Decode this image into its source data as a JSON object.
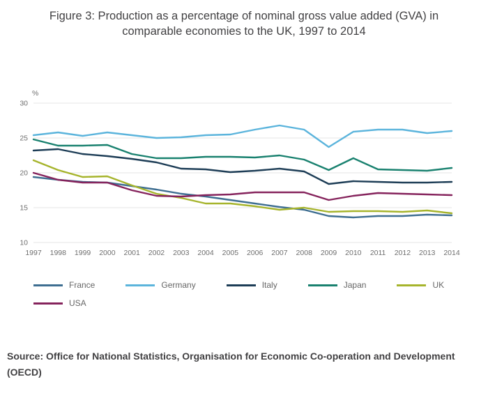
{
  "title": {
    "line1": "Figure 3: Production as a percentage of nominal gross value added (GVA) in",
    "line2": "comparable economies to the UK, 1997 to 2014"
  },
  "source": "Source: Office for National Statistics, Organisation for Economic Co-operation and Development (OECD)",
  "colors": {
    "grid": "#e6e6e6",
    "axis_text": "#6e6e6e",
    "title_text": "#414042"
  },
  "chart_data": {
    "type": "line",
    "title": "Figure 3: Production as a percentage of nominal gross value added (GVA) in comparable economies to the UK, 1997 to 2014",
    "xlabel": "",
    "ylabel": "%",
    "ylim": [
      10,
      30
    ],
    "yticks": [
      10,
      15,
      20,
      25,
      30
    ],
    "grid": "horizontal",
    "legend_position": "bottom",
    "x": [
      1997,
      1998,
      1999,
      2000,
      2001,
      2002,
      2003,
      2004,
      2005,
      2006,
      2007,
      2008,
      2009,
      2010,
      2011,
      2012,
      2013,
      2014
    ],
    "series": [
      {
        "name": "France",
        "color": "#3e6e91",
        "values": [
          19.4,
          19.0,
          18.7,
          18.6,
          18.1,
          17.6,
          17.0,
          16.6,
          16.1,
          15.6,
          15.1,
          14.7,
          13.8,
          13.6,
          13.8,
          13.8,
          14.0,
          13.9
        ]
      },
      {
        "name": "Germany",
        "color": "#5bb4dc",
        "values": [
          25.4,
          25.8,
          25.3,
          25.8,
          25.4,
          25.0,
          25.1,
          25.4,
          25.5,
          26.2,
          26.8,
          26.2,
          23.7,
          25.9,
          26.2,
          26.2,
          25.7,
          26.0
        ]
      },
      {
        "name": "Italy",
        "color": "#1d3d56",
        "values": [
          23.2,
          23.4,
          22.7,
          22.4,
          22.0,
          21.5,
          20.6,
          20.5,
          20.1,
          20.3,
          20.6,
          20.2,
          18.4,
          18.8,
          18.7,
          18.6,
          18.6,
          18.7
        ]
      },
      {
        "name": "Japan",
        "color": "#19816f",
        "values": [
          24.8,
          23.9,
          23.9,
          24.0,
          22.7,
          22.1,
          22.1,
          22.3,
          22.3,
          22.2,
          22.5,
          21.9,
          20.4,
          22.1,
          20.5,
          20.4,
          20.3,
          20.7
        ]
      },
      {
        "name": "UK",
        "color": "#a6b42c",
        "values": [
          21.8,
          20.4,
          19.4,
          19.5,
          18.2,
          17.0,
          16.4,
          15.6,
          15.6,
          15.2,
          14.7,
          15.0,
          14.4,
          14.5,
          14.5,
          14.4,
          14.6,
          14.2
        ]
      },
      {
        "name": "USA",
        "color": "#85235c",
        "values": [
          20.0,
          19.0,
          18.6,
          18.6,
          17.5,
          16.7,
          16.6,
          16.8,
          16.9,
          17.2,
          17.2,
          17.2,
          16.1,
          16.7,
          17.1,
          17.0,
          16.9,
          16.8
        ]
      }
    ]
  }
}
